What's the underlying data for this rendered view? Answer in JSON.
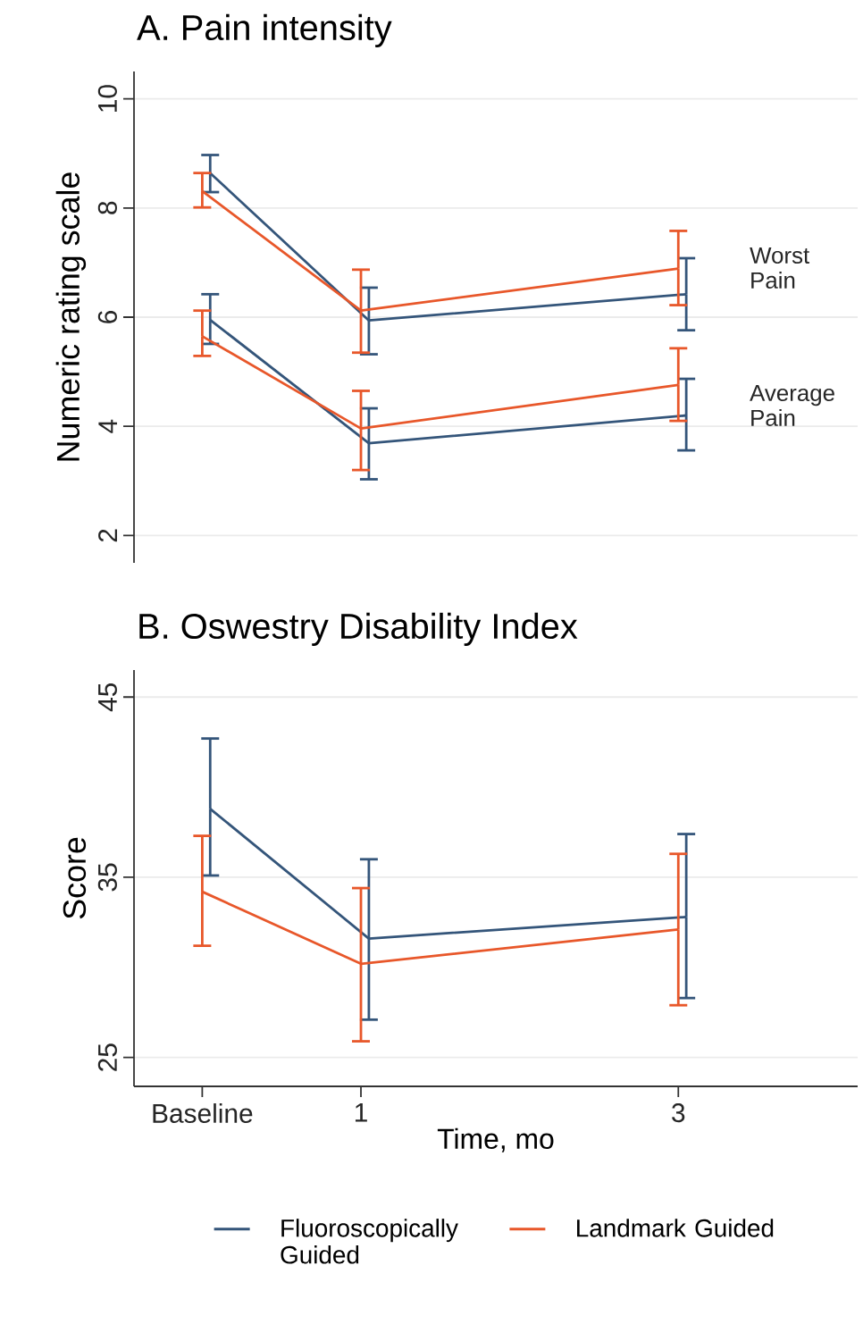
{
  "chart_data": [
    {
      "type": "line",
      "title": "A. Pain intensity",
      "ylabel": "Numeric rating scale",
      "xlim": [
        -0.43,
        4.13
      ],
      "ylim": [
        1.5,
        10.5
      ],
      "yticks": [
        2,
        4,
        6,
        8,
        10
      ],
      "tick_labels": "y",
      "grid": "y",
      "annotations": [
        "Worst Pain",
        "Average Pain"
      ],
      "series": [
        {
          "color": "#34557a",
          "x": [
            0.05,
            1.05,
            3.05
          ],
          "values": [
            8.64,
            5.94,
            6.42
          ],
          "errors": [
            [
              8.29,
              8.97
            ],
            [
              5.32,
              6.54
            ],
            [
              5.76,
              7.08
            ]
          ]
        },
        {
          "color": "#e8572a",
          "x": [
            0,
            1,
            3
          ],
          "values": [
            8.31,
            6.12,
            6.89
          ],
          "errors": [
            [
              8.01,
              8.64
            ],
            [
              5.35,
              6.87
            ],
            [
              6.22,
              7.58
            ]
          ]
        },
        {
          "color": "#34557a",
          "x": [
            0.05,
            1.05,
            3.05
          ],
          "values": [
            5.95,
            3.69,
            4.2
          ],
          "errors": [
            [
              5.51,
              6.42
            ],
            [
              3.03,
              4.33
            ],
            [
              3.56,
              4.87
            ]
          ]
        },
        {
          "color": "#e8572a",
          "x": [
            0,
            1,
            3
          ],
          "values": [
            5.65,
            3.96,
            4.76
          ],
          "errors": [
            [
              5.29,
              6.12
            ],
            [
              3.2,
              4.65
            ],
            [
              4.1,
              5.43
            ]
          ]
        }
      ]
    },
    {
      "type": "line",
      "title": "B. Oswestry Disability Index",
      "ylabel": "Score",
      "xlabel": "Time, mo",
      "xlim": [
        -0.43,
        4.13
      ],
      "ylim": [
        23.4,
        46.5
      ],
      "yticks": [
        25,
        35,
        45
      ],
      "xticks": [
        {
          "value": 0,
          "label": "Baseline"
        },
        1,
        3
      ],
      "grid": "y",
      "legend": "bottom",
      "series": [
        {
          "name": "Fluoroscopically Guided",
          "color": "#34557a",
          "x": [
            0.05,
            1.05,
            3.05
          ],
          "values": [
            38.8,
            31.6,
            32.8
          ],
          "errors": [
            [
              35.1,
              42.7
            ],
            [
              27.1,
              36.0
            ],
            [
              28.3,
              37.4
            ]
          ]
        },
        {
          "name": "Landmark Guided",
          "color": "#e8572a",
          "x": [
            0,
            1,
            3
          ],
          "values": [
            34.2,
            30.2,
            32.1
          ],
          "errors": [
            [
              31.2,
              37.3
            ],
            [
              25.9,
              34.4
            ],
            [
              27.9,
              36.3
            ]
          ]
        }
      ]
    }
  ]
}
